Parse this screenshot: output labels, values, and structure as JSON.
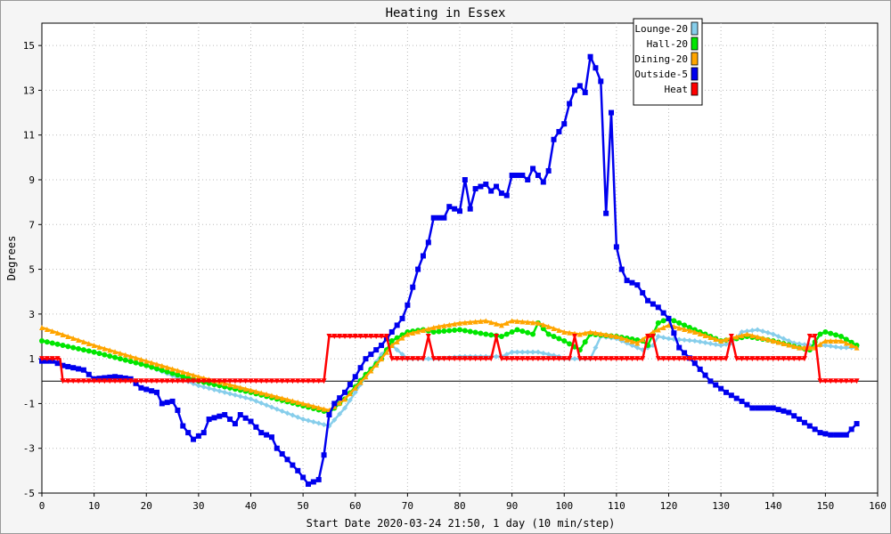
{
  "chart_data": {
    "type": "line",
    "title": "Heating in Essex",
    "xlabel": "Start Date 2020-03-24 21:50, 1 day (10 min/step)",
    "ylabel": "Degrees",
    "xlim": [
      0,
      160
    ],
    "ylim": [
      -5,
      16
    ],
    "xticks": [
      0,
      10,
      20,
      30,
      40,
      50,
      60,
      70,
      80,
      90,
      100,
      110,
      120,
      130,
      140,
      150,
      160
    ],
    "yticks": [
      -5,
      -3,
      -1,
      1,
      3,
      5,
      7,
      9,
      11,
      13,
      15
    ],
    "grid": true,
    "legend_position": "top-right",
    "series": [
      {
        "name": "Lounge-20",
        "color": "#87ceeb",
        "marker": "diamond",
        "points": [
          [
            0,
            1.8
          ],
          [
            10,
            1.3
          ],
          [
            20,
            0.7
          ],
          [
            30,
            -0.2
          ],
          [
            40,
            -0.8
          ],
          [
            50,
            -1.7
          ],
          [
            55,
            -2.0
          ],
          [
            58,
            -1.2
          ],
          [
            62,
            0.2
          ],
          [
            65,
            1.2
          ],
          [
            67,
            1.6
          ],
          [
            69,
            1.2
          ],
          [
            70,
            1.0
          ],
          [
            73,
            1.0
          ],
          [
            76,
            1.0
          ],
          [
            80,
            1.1
          ],
          [
            85,
            1.1
          ],
          [
            88,
            1.1
          ],
          [
            90,
            1.3
          ],
          [
            95,
            1.3
          ],
          [
            99,
            1.1
          ],
          [
            100,
            1.0
          ],
          [
            105,
            1.0
          ],
          [
            107,
            2.0
          ],
          [
            110,
            1.9
          ],
          [
            113,
            1.6
          ],
          [
            115,
            1.4
          ],
          [
            117,
            1.6
          ],
          [
            118,
            2.0
          ],
          [
            120,
            1.9
          ],
          [
            125,
            1.8
          ],
          [
            130,
            1.6
          ],
          [
            132,
            1.7
          ],
          [
            134,
            2.2
          ],
          [
            137,
            2.3
          ],
          [
            140,
            2.1
          ],
          [
            144,
            1.7
          ],
          [
            147,
            1.6
          ],
          [
            150,
            1.6
          ],
          [
            153,
            1.5
          ],
          [
            156,
            1.5
          ]
        ]
      },
      {
        "name": "Hall-20",
        "color": "#00e600",
        "marker": "circle",
        "points": [
          [
            0,
            1.8
          ],
          [
            10,
            1.3
          ],
          [
            20,
            0.7
          ],
          [
            30,
            0.0
          ],
          [
            40,
            -0.5
          ],
          [
            50,
            -1.1
          ],
          [
            55,
            -1.4
          ],
          [
            58,
            -0.8
          ],
          [
            62,
            0.3
          ],
          [
            65,
            1.0
          ],
          [
            67,
            1.8
          ],
          [
            70,
            2.2
          ],
          [
            73,
            2.3
          ],
          [
            75,
            2.2
          ],
          [
            80,
            2.3
          ],
          [
            85,
            2.1
          ],
          [
            88,
            2.0
          ],
          [
            91,
            2.3
          ],
          [
            94,
            2.1
          ],
          [
            95,
            2.6
          ],
          [
            97,
            2.1
          ],
          [
            100,
            1.8
          ],
          [
            103,
            1.4
          ],
          [
            105,
            2.1
          ],
          [
            110,
            2.0
          ],
          [
            115,
            1.8
          ],
          [
            116,
            1.6
          ],
          [
            118,
            2.6
          ],
          [
            120,
            2.8
          ],
          [
            125,
            2.3
          ],
          [
            130,
            1.8
          ],
          [
            133,
            1.9
          ],
          [
            135,
            2.0
          ],
          [
            140,
            1.8
          ],
          [
            145,
            1.5
          ],
          [
            147,
            1.4
          ],
          [
            149,
            2.1
          ],
          [
            150,
            2.2
          ],
          [
            153,
            2.0
          ],
          [
            156,
            1.6
          ]
        ]
      },
      {
        "name": "Dining-20",
        "color": "#ffa500",
        "marker": "triangle",
        "points": [
          [
            0,
            2.4
          ],
          [
            10,
            1.6
          ],
          [
            20,
            0.9
          ],
          [
            30,
            0.2
          ],
          [
            40,
            -0.4
          ],
          [
            50,
            -1.0
          ],
          [
            55,
            -1.3
          ],
          [
            58,
            -0.8
          ],
          [
            62,
            0.2
          ],
          [
            65,
            1.0
          ],
          [
            67,
            1.6
          ],
          [
            70,
            2.1
          ],
          [
            75,
            2.4
          ],
          [
            80,
            2.6
          ],
          [
            85,
            2.7
          ],
          [
            88,
            2.5
          ],
          [
            90,
            2.7
          ],
          [
            95,
            2.6
          ],
          [
            100,
            2.2
          ],
          [
            103,
            2.1
          ],
          [
            105,
            2.2
          ],
          [
            110,
            2.0
          ],
          [
            114,
            1.7
          ],
          [
            117,
            2.2
          ],
          [
            120,
            2.5
          ],
          [
            125,
            2.2
          ],
          [
            130,
            1.8
          ],
          [
            135,
            2.1
          ],
          [
            140,
            1.8
          ],
          [
            145,
            1.5
          ],
          [
            148,
            1.5
          ],
          [
            150,
            1.8
          ],
          [
            153,
            1.8
          ],
          [
            156,
            1.5
          ]
        ]
      },
      {
        "name": "Outside-5",
        "color": "#0000ee",
        "marker": "square",
        "points": [
          [
            0,
            0.9
          ],
          [
            2,
            0.9
          ],
          [
            4,
            0.7
          ],
          [
            8,
            0.5
          ],
          [
            10,
            0.1
          ],
          [
            14,
            0.2
          ],
          [
            17,
            0.1
          ],
          [
            19,
            -0.3
          ],
          [
            22,
            -0.5
          ],
          [
            23,
            -1.0
          ],
          [
            25,
            -0.9
          ],
          [
            26,
            -1.3
          ],
          [
            27,
            -2.0
          ],
          [
            29,
            -2.6
          ],
          [
            31,
            -2.3
          ],
          [
            32,
            -1.7
          ],
          [
            35,
            -1.5
          ],
          [
            37,
            -1.9
          ],
          [
            38,
            -1.5
          ],
          [
            40,
            -1.8
          ],
          [
            42,
            -2.3
          ],
          [
            44,
            -2.5
          ],
          [
            45,
            -3.0
          ],
          [
            47,
            -3.5
          ],
          [
            49,
            -4.0
          ],
          [
            51,
            -4.6
          ],
          [
            53,
            -4.4
          ],
          [
            54,
            -3.3
          ],
          [
            55,
            -1.5
          ],
          [
            56,
            -1.0
          ],
          [
            58,
            -0.5
          ],
          [
            60,
            0.2
          ],
          [
            62,
            1.0
          ],
          [
            65,
            1.6
          ],
          [
            67,
            2.2
          ],
          [
            69,
            2.8
          ],
          [
            70,
            3.4
          ],
          [
            72,
            5.0
          ],
          [
            74,
            6.2
          ],
          [
            75,
            7.3
          ],
          [
            77,
            7.3
          ],
          [
            78,
            7.8
          ],
          [
            80,
            7.6
          ],
          [
            81,
            9.0
          ],
          [
            82,
            7.7
          ],
          [
            83,
            8.6
          ],
          [
            85,
            8.8
          ],
          [
            86,
            8.5
          ],
          [
            87,
            8.7
          ],
          [
            88,
            8.4
          ],
          [
            89,
            8.3
          ],
          [
            90,
            9.2
          ],
          [
            92,
            9.2
          ],
          [
            93,
            9.0
          ],
          [
            94,
            9.5
          ],
          [
            96,
            8.9
          ],
          [
            97,
            9.4
          ],
          [
            98,
            10.8
          ],
          [
            100,
            11.5
          ],
          [
            101,
            12.4
          ],
          [
            102,
            13.0
          ],
          [
            103,
            13.2
          ],
          [
            104,
            12.9
          ],
          [
            105,
            14.5
          ],
          [
            106,
            14.0
          ],
          [
            107,
            13.4
          ],
          [
            108,
            7.5
          ],
          [
            109,
            12.0
          ],
          [
            110,
            6.0
          ],
          [
            111,
            5.0
          ],
          [
            112,
            4.5
          ],
          [
            114,
            4.3
          ],
          [
            116,
            3.6
          ],
          [
            118,
            3.3
          ],
          [
            120,
            2.8
          ],
          [
            122,
            1.5
          ],
          [
            125,
            0.8
          ],
          [
            128,
            0.0
          ],
          [
            131,
            -0.5
          ],
          [
            134,
            -0.9
          ],
          [
            136,
            -1.2
          ],
          [
            140,
            -1.2
          ],
          [
            143,
            -1.4
          ],
          [
            145,
            -1.7
          ],
          [
            147,
            -2.0
          ],
          [
            149,
            -2.3
          ],
          [
            151,
            -2.4
          ],
          [
            154,
            -2.4
          ],
          [
            156,
            -1.9
          ]
        ]
      },
      {
        "name": "Heat",
        "color": "#ff0000",
        "marker": "triangle-down",
        "points": [
          [
            0,
            1.0
          ],
          [
            3.5,
            1.0
          ],
          [
            4,
            0.0
          ],
          [
            54,
            0.0
          ],
          [
            55,
            2.0
          ],
          [
            66,
            2.0
          ],
          [
            67,
            1.0
          ],
          [
            73,
            1.0
          ],
          [
            74,
            2.0
          ],
          [
            75,
            1.0
          ],
          [
            86,
            1.0
          ],
          [
            87,
            2.0
          ],
          [
            88,
            1.0
          ],
          [
            101,
            1.0
          ],
          [
            102,
            2.0
          ],
          [
            103,
            1.0
          ],
          [
            115,
            1.0
          ],
          [
            116,
            2.0
          ],
          [
            117,
            2.0
          ],
          [
            118,
            1.0
          ],
          [
            131,
            1.0
          ],
          [
            132,
            2.0
          ],
          [
            133,
            1.0
          ],
          [
            146,
            1.0
          ],
          [
            147,
            2.0
          ],
          [
            148,
            2.0
          ],
          [
            149,
            0.0
          ],
          [
            156,
            0.0
          ]
        ]
      }
    ]
  }
}
